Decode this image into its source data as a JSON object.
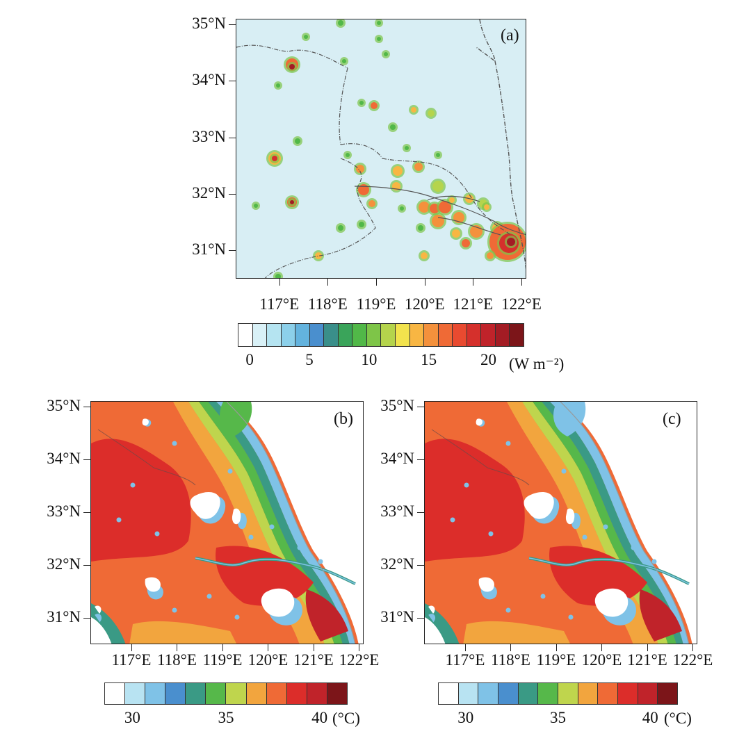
{
  "panel_a": {
    "letter": "(a)",
    "lat_ticks": [
      "35°N",
      "34°N",
      "33°N",
      "32°N",
      "31°N"
    ],
    "lon_ticks": [
      "117°E",
      "118°E",
      "119°E",
      "120°E",
      "121°E",
      "122°E"
    ],
    "colorbar": {
      "colors": [
        "#ffffff",
        "#d9f1f7",
        "#b5e4f1",
        "#8cd0ea",
        "#63b3de",
        "#4a8fce",
        "#3a8f8a",
        "#3aa45a",
        "#51b848",
        "#7ec548",
        "#b5d44c",
        "#f2e34d",
        "#f8b643",
        "#f4913c",
        "#ef6a36",
        "#e94a30",
        "#d5302c",
        "#c0232a",
        "#a31c24",
        "#7c1519"
      ],
      "labels": [
        "0",
        "5",
        "10",
        "15",
        "20"
      ],
      "label_values": [
        0,
        5,
        10,
        15,
        20
      ],
      "unit": "(W m⁻²)"
    },
    "background_color": "#d8eef4"
  },
  "panel_b": {
    "letter": "(b)",
    "lat_ticks": [
      "35°N",
      "34°N",
      "33°N",
      "32°N",
      "31°N"
    ],
    "lon_ticks": [
      "117°E",
      "118°E",
      "119°E",
      "120°E",
      "121°E",
      "122°E"
    ],
    "colorbar": {
      "colors": [
        "#ffffff",
        "#b8e3f2",
        "#7fc2e7",
        "#4a8fce",
        "#3a9a85",
        "#56b84a",
        "#bfd54d",
        "#f2a53e",
        "#ef6a36",
        "#dc2d2a",
        "#c0232a",
        "#7c1519"
      ],
      "labels": [
        "30",
        "35",
        "40"
      ],
      "label_values": [
        30,
        35,
        40
      ],
      "unit": "(°C)"
    }
  },
  "panel_c": {
    "letter": "(c)",
    "lat_ticks": [
      "35°N",
      "34°N",
      "33°N",
      "32°N",
      "31°N"
    ],
    "lon_ticks": [
      "117°E",
      "118°E",
      "119°E",
      "120°E",
      "121°E",
      "122°E"
    ],
    "colorbar": {
      "colors": [
        "#ffffff",
        "#b8e3f2",
        "#7fc2e7",
        "#4a8fce",
        "#3a9a85",
        "#56b84a",
        "#bfd54d",
        "#f2a53e",
        "#ef6a36",
        "#dc2d2a",
        "#c0232a",
        "#7c1519"
      ],
      "labels": [
        "30",
        "35",
        "40"
      ],
      "label_values": [
        30,
        35,
        40
      ],
      "unit": "(°C)"
    }
  },
  "map_extent": {
    "lon_min": 116.1,
    "lon_max": 122.1,
    "lat_min": 30.5,
    "lat_max": 35.1
  }
}
